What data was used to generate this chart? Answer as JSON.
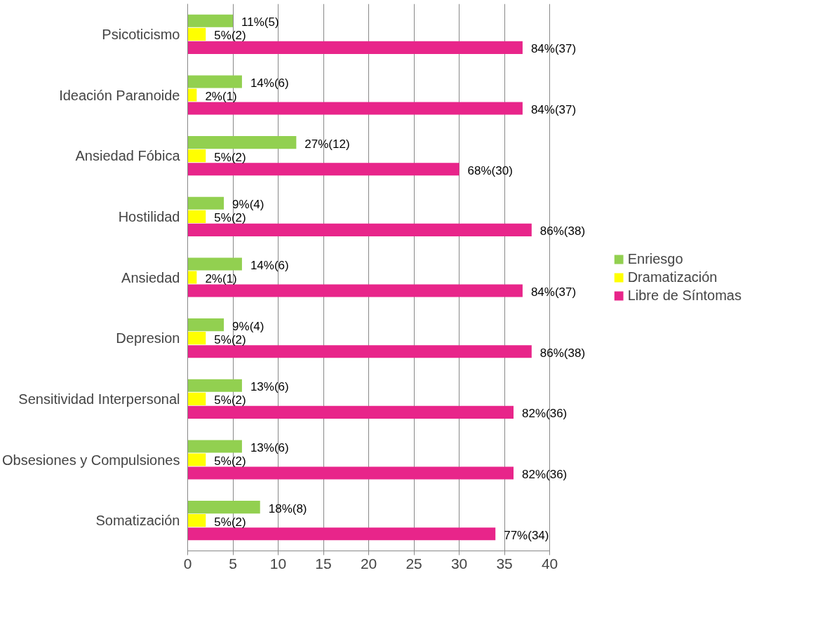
{
  "chart_data": {
    "type": "bar",
    "orientation": "horizontal",
    "categories": [
      "Psicoticismo",
      "Ideación Paranoide",
      "Ansiedad Fóbica",
      "Hostilidad",
      "Ansiedad",
      "Depresion",
      "Sensitividad Interpersonal",
      "Obsesiones y Compulsiones",
      "Somatización"
    ],
    "series": [
      {
        "name": "Enriesgo",
        "color": "#92d050",
        "values": [
          5,
          6,
          12,
          4,
          6,
          4,
          6,
          6,
          8
        ],
        "value_labels": [
          "11%(5)",
          "14%(6)",
          "27%(12)",
          "9%(4)",
          "14%(6)",
          "9%(4)",
          "13%(6)",
          "13%(6)",
          "18%(8)"
        ]
      },
      {
        "name": "Dramatización",
        "color": "#ffff00",
        "values": [
          2,
          1,
          2,
          2,
          1,
          2,
          2,
          2,
          2
        ],
        "value_labels": [
          "5%(2)",
          "2%(1)",
          "5%(2)",
          "5%(2)",
          "2%(1)",
          "5%(2)",
          "5%(2)",
          "5%(2)",
          "5%(2)"
        ]
      },
      {
        "name": "Libre de Síntomas",
        "color": "#e8258a",
        "values": [
          37,
          37,
          30,
          38,
          37,
          38,
          36,
          36,
          34
        ],
        "value_labels": [
          "84%(37)",
          "84%(37)",
          "68%(30)",
          "86%(38)",
          "84%(37)",
          "86%(38)",
          "82%(36)",
          "82%(36)",
          "77%(34)"
        ]
      }
    ],
    "xlim": [
      0,
      40
    ],
    "xticks": [
      0,
      5,
      10,
      15,
      20,
      25,
      30,
      35,
      40
    ],
    "grid": "x",
    "legend": "right"
  }
}
